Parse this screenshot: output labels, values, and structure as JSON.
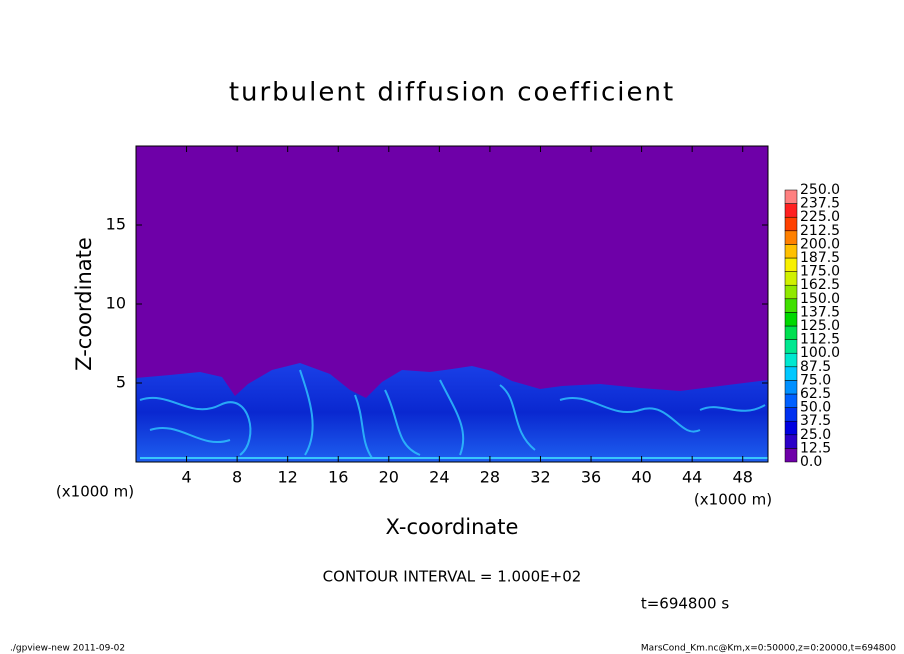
{
  "chart_data": {
    "type": "contour",
    "title": "turbulent diffusion coefficient",
    "xlabel": "X-coordinate",
    "ylabel": "Z-coordinate",
    "axis_unit": "(x1000 m)",
    "xlim": [
      0,
      50
    ],
    "xticks": [
      4,
      8,
      12,
      16,
      20,
      24,
      28,
      32,
      36,
      40,
      44,
      48
    ],
    "ylim": [
      0,
      20
    ],
    "yticks": [
      5,
      10,
      15
    ],
    "colorbar": {
      "levels": [
        {
          "value": 0,
          "label": "0.0"
        },
        {
          "value": 12.5,
          "label": "12.5"
        },
        {
          "value": 25,
          "label": "25.0"
        },
        {
          "value": 37.5,
          "label": "37.5"
        },
        {
          "value": 50,
          "label": "50.0"
        },
        {
          "value": 62.5,
          "label": "62.5"
        },
        {
          "value": 75,
          "label": "75.0"
        },
        {
          "value": 87.5,
          "label": "87.5"
        },
        {
          "value": 100,
          "label": "100.0"
        },
        {
          "value": 112.5,
          "label": "112.5"
        },
        {
          "value": 125,
          "label": "125.0"
        },
        {
          "value": 137.5,
          "label": "137.5"
        },
        {
          "value": 150,
          "label": "150.0"
        },
        {
          "value": 162.5,
          "label": "162.5"
        },
        {
          "value": 175,
          "label": "175.0"
        },
        {
          "value": 187.5,
          "label": "187.5"
        },
        {
          "value": 200,
          "label": "200.0"
        },
        {
          "value": 212.5,
          "label": "212.5"
        },
        {
          "value": 225,
          "label": "225.0"
        },
        {
          "value": 237.5,
          "label": "237.5"
        },
        {
          "value": 250,
          "label": "250.0"
        }
      ],
      "colors": [
        "#6e00a8",
        "#2c00c8",
        "#0000e0",
        "#0030f0",
        "#0060ff",
        "#0090ff",
        "#00c8ff",
        "#00e8d0",
        "#00e890",
        "#00e050",
        "#00d800",
        "#40e000",
        "#90e800",
        "#d0f000",
        "#f8f000",
        "#ffc000",
        "#ff8000",
        "#ff4000",
        "#ff2020",
        "#ff8080"
      ]
    },
    "annotations": {
      "contour_interval": "CONTOUR INTERVAL = 1.000E+02",
      "time": "t=694800 s",
      "program": "./gpview-new  2011-09-02",
      "source": "MarsCond_Km.nc@Km,x=0:50000,z=0:20000,t=694800"
    }
  }
}
